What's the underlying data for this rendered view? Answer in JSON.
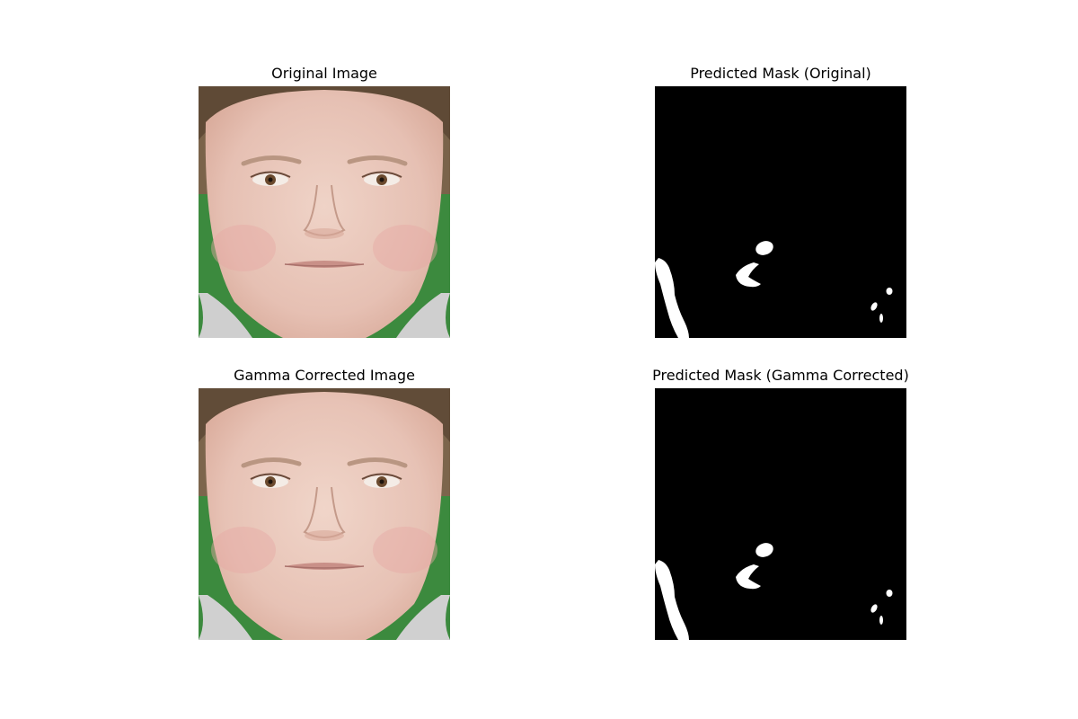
{
  "figure": {
    "panels": [
      {
        "title": "Original Image",
        "kind": "photo"
      },
      {
        "title": "Predicted Mask (Original)",
        "kind": "mask"
      },
      {
        "title": "Gamma Corrected Image",
        "kind": "photo"
      },
      {
        "title": "Predicted Mask (Gamma Corrected)",
        "kind": "mask"
      }
    ]
  },
  "colors": {
    "background": "#ffffff",
    "mask_background": "#000000",
    "mask_foreground": "#ffffff",
    "photo_backdrop": "#3c8a3e",
    "skin": "#e7c4b8",
    "hair": "#6e5a44"
  }
}
